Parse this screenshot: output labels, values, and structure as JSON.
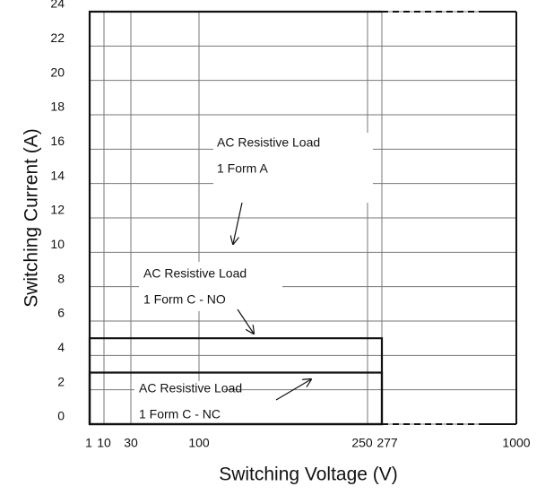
{
  "chart_data": {
    "type": "region",
    "xlabel": "Switching Voltage (V)",
    "ylabel": "Switching Current (A)",
    "xlim": [
      1,
      1000
    ],
    "xticks": [
      1,
      10,
      30,
      100,
      250,
      277,
      1000
    ],
    "ylim": [
      0,
      24
    ],
    "yticks": [
      0,
      2,
      4,
      6,
      8,
      10,
      12,
      14,
      16,
      18,
      20,
      22,
      24
    ],
    "grid": true,
    "regions": [
      {
        "text": "AC Resistive Load",
        "form": "1 Form A",
        "voltage": 277,
        "current": 24
      },
      {
        "text": "AC Resistive Load",
        "form": "1 Form C - NO",
        "voltage": 277,
        "current": 5
      },
      {
        "text": "AC Resistive Load",
        "form": "1 Form C - NC",
        "voltage": 277,
        "current": 3
      }
    ]
  }
}
